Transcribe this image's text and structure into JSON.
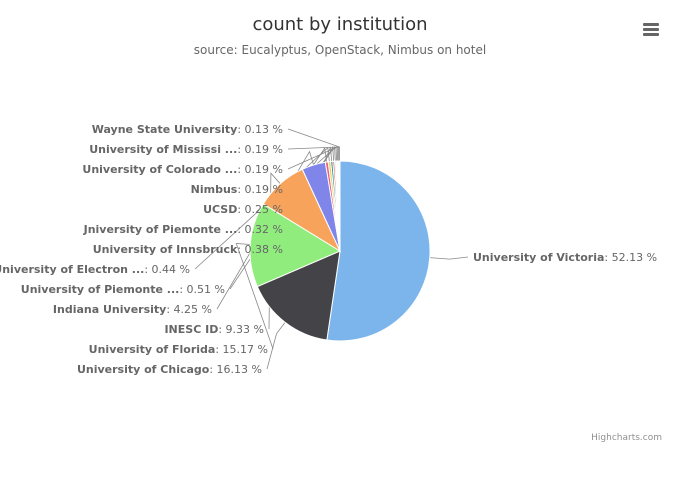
{
  "chart": {
    "title": "count by institution",
    "subtitle": "source: Eucalyptus, OpenStack, Nimbus on hotel",
    "credits": "Highcharts.com"
  },
  "chart_data": {
    "type": "pie",
    "title": "count by institution",
    "subtitle": "source: Eucalyptus, OpenStack, Nimbus on hotel",
    "value_suffix": " %",
    "slices": [
      {
        "name": "University of Victoria",
        "value": 52.13,
        "color": "#7cb5ec"
      },
      {
        "name": "University of Chicago",
        "value": 16.13,
        "color": "#434348"
      },
      {
        "name": "University of Florida",
        "value": 15.17,
        "color": "#90ed7d"
      },
      {
        "name": "INESC ID",
        "value": 9.33,
        "color": "#f7a35c"
      },
      {
        "name": "Indiana University",
        "value": 4.25,
        "color": "#8085e9"
      },
      {
        "name": "University of Piemonte ...",
        "value": 0.51,
        "color": "#f15c80"
      },
      {
        "name": "University of Electron ...",
        "value": 0.44,
        "color": "#e4d354"
      },
      {
        "name": "University of Innsbruck",
        "value": 0.38,
        "color": "#2b908f"
      },
      {
        "name": "Jniversity of Piemonte ...",
        "value": 0.32,
        "color": "#f45b5b"
      },
      {
        "name": "UCSD",
        "value": 0.25,
        "color": "#91e8e1"
      },
      {
        "name": "Nimbus",
        "value": 0.19,
        "color": "#7cb5ec"
      },
      {
        "name": "University of Colorado ...",
        "value": 0.19,
        "color": "#434348"
      },
      {
        "name": "University of Mississi ...",
        "value": 0.19,
        "color": "#90ed7d"
      },
      {
        "name": "Wayne State University",
        "value": 0.13,
        "color": "#f7a35c"
      }
    ]
  }
}
